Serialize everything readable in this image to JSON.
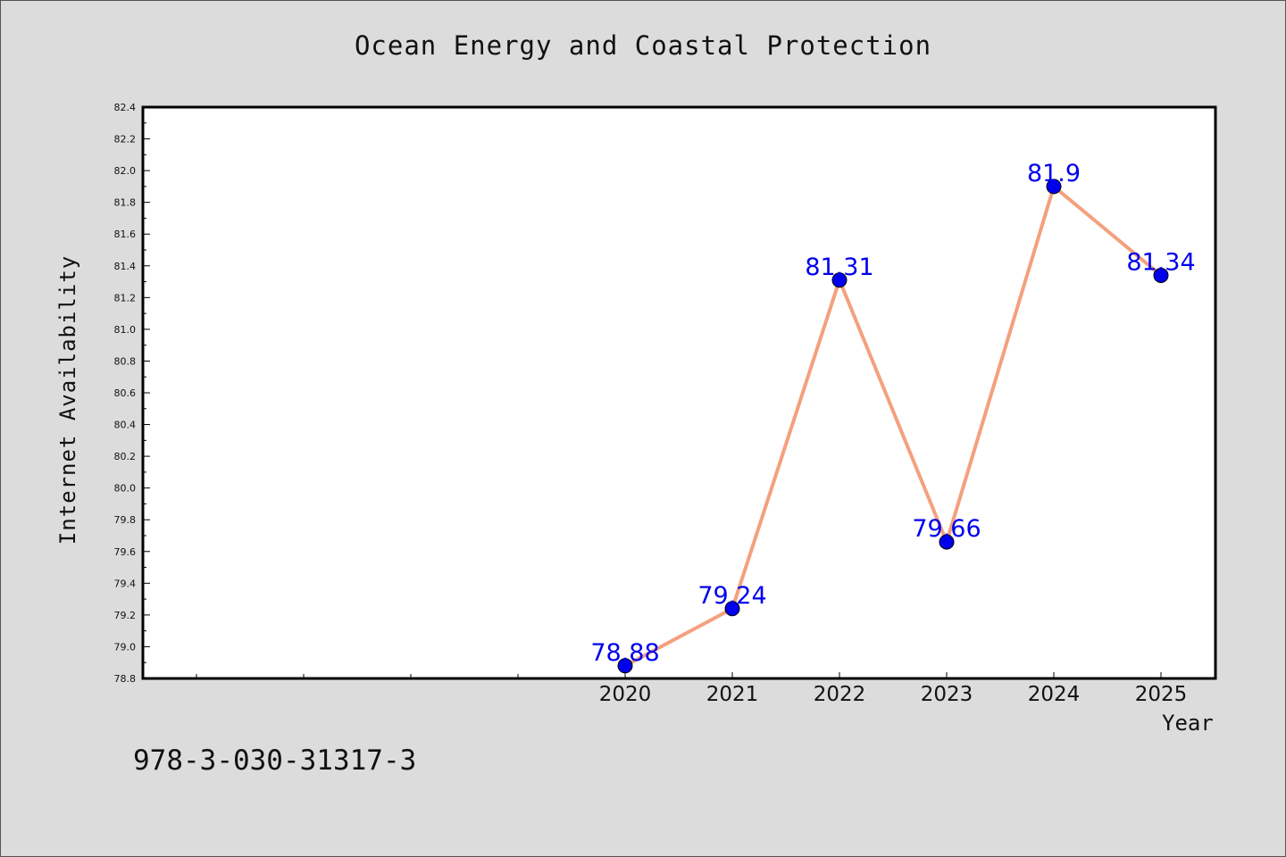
{
  "chart_data": {
    "type": "line",
    "title": "Ocean Energy and Coastal Protection",
    "xlabel": "Year",
    "ylabel": "Internet Availability",
    "x": [
      "2020",
      "2021",
      "2022",
      "2023",
      "2024",
      "2025"
    ],
    "series": [
      {
        "values": [
          78.88,
          79.24,
          81.31,
          79.66,
          81.9,
          81.34
        ]
      }
    ],
    "data_labels": [
      "78.88",
      "79.24",
      "81.31",
      "79.66",
      "81.9",
      "81.34"
    ],
    "ylim": [
      78.8,
      82.4
    ],
    "yticks": [
      "78.8",
      "79.0",
      "79.2",
      "79.4",
      "79.6",
      "79.8",
      "80.0",
      "80.2",
      "80.4",
      "80.6",
      "80.8",
      "81.0",
      "81.2",
      "81.4",
      "81.6",
      "81.8",
      "82.0",
      "82.2",
      "82.4"
    ],
    "grid": false,
    "colors": {
      "line": "#f4a07e",
      "marker": "#0000ee",
      "data_label": "#0000ee",
      "plot_bg": "#ffffff",
      "page_bg": "#dcdcdc"
    }
  },
  "footer": {
    "isbn": "978-3-030-31317-3"
  }
}
